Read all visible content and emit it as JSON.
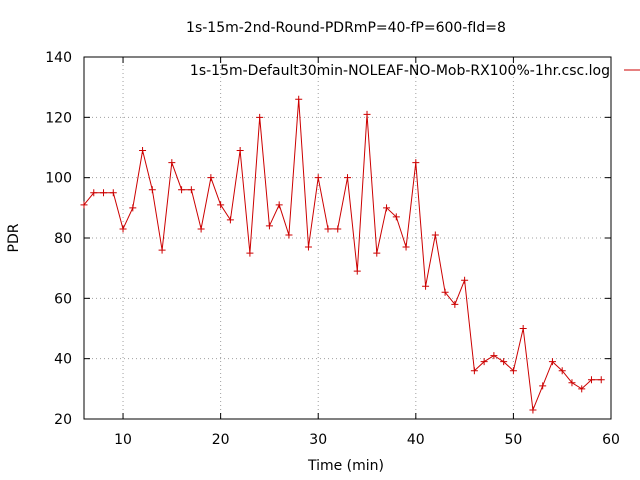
{
  "chart_data": {
    "type": "line",
    "title": "1s-15m-2nd-Round-PDRmP=40-fP=600-fId=8",
    "xlabel": "Time (min)",
    "ylabel": "PDR",
    "xlim": [
      6,
      60
    ],
    "ylim": [
      20,
      140
    ],
    "xticks": [
      10,
      20,
      30,
      40,
      50,
      60
    ],
    "yticks": [
      20,
      40,
      60,
      80,
      100,
      120,
      140
    ],
    "grid": true,
    "legend_position": "top-right",
    "series": [
      {
        "name": "1s-15m-Default30min-NOLEAF-NO-Mob-RX100%-1hr.csc.log",
        "color": "#cc0000",
        "marker": "plus",
        "x": [
          6,
          7,
          8,
          9,
          10,
          11,
          12,
          13,
          14,
          15,
          16,
          17,
          18,
          19,
          20,
          21,
          22,
          23,
          24,
          25,
          26,
          27,
          28,
          29,
          30,
          31,
          32,
          33,
          34,
          35,
          36,
          37,
          38,
          39,
          40,
          41,
          42,
          43,
          44,
          45,
          46,
          47,
          48,
          49,
          50,
          51,
          52,
          53,
          54,
          55,
          56,
          57,
          58,
          59
        ],
        "y": [
          91,
          95,
          95,
          95,
          83,
          90,
          109,
          96,
          76,
          105,
          96,
          96,
          83,
          100,
          91,
          86,
          109,
          75,
          120,
          84,
          91,
          81,
          126,
          77,
          100,
          83,
          83,
          100,
          69,
          121,
          75,
          90,
          87,
          77,
          105,
          64,
          81,
          62,
          58,
          66,
          36,
          39,
          41,
          39,
          36,
          50,
          23,
          31,
          39,
          36,
          32,
          30,
          33,
          33
        ]
      }
    ]
  }
}
